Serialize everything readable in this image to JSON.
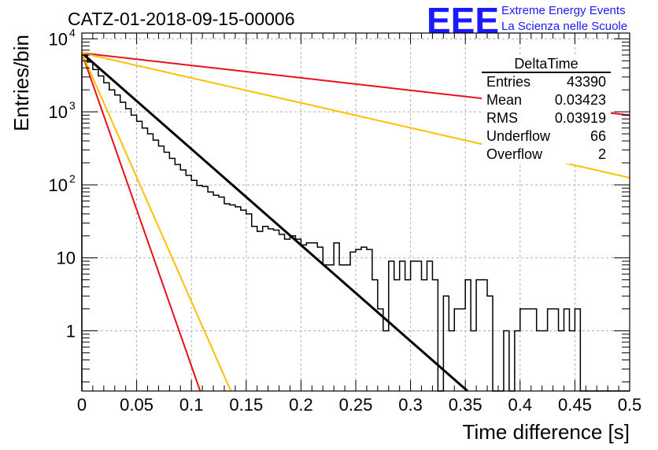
{
  "header": {
    "run_title": "CATZ-01-2018-09-15-00006",
    "logo_text": "EEE",
    "logo_line1": "Extreme Energy Events",
    "logo_line2": "La Scienza nelle Scuole",
    "logo_color": "#1a1aff"
  },
  "stats": {
    "title": "DeltaTime",
    "rows": [
      {
        "label": "Entries",
        "value": "43390"
      },
      {
        "label": "Mean",
        "value": "0.03423"
      },
      {
        "label": "RMS",
        "value": "0.03919"
      },
      {
        "label": "Underflow",
        "value": "66"
      },
      {
        "label": "Overflow",
        "value": "2"
      }
    ]
  },
  "chart_data": {
    "type": "histogram",
    "xlabel": "Time difference [s]",
    "ylabel": "Entries/bin",
    "xlim": [
      0,
      0.5
    ],
    "ylim": [
      0.15,
      12000
    ],
    "y_scale": "log",
    "grid": true,
    "x_ticks": [
      "0",
      "0.05",
      "0.1",
      "0.15",
      "0.2",
      "0.25",
      "0.3",
      "0.35",
      "0.4",
      "0.45",
      "0.5"
    ],
    "y_ticks": [
      {
        "value": 1,
        "label": "1",
        "exp": ""
      },
      {
        "value": 10,
        "label": "10",
        "exp": ""
      },
      {
        "value": 100,
        "label": "10",
        "exp": "2"
      },
      {
        "value": 1000,
        "label": "10",
        "exp": "3"
      },
      {
        "value": 10000,
        "label": "10",
        "exp": "4"
      }
    ],
    "bin_width": 0.005,
    "bin_start": 0,
    "histogram_color": "#000000",
    "histogram_values": [
      6000,
      4800,
      3800,
      3100,
      2500,
      2000,
      1700,
      1350,
      1100,
      900,
      740,
      600,
      500,
      410,
      340,
      280,
      230,
      190,
      160,
      135,
      115,
      98,
      95,
      80,
      72,
      68,
      55,
      53,
      50,
      45,
      40,
      27,
      23,
      27,
      25,
      24,
      21,
      18,
      20,
      18,
      15,
      16,
      16,
      14,
      8,
      8,
      16,
      8,
      8,
      12,
      13,
      14,
      13,
      5,
      2,
      1,
      9,
      5,
      9,
      5,
      9,
      9,
      5,
      9,
      5,
      0,
      3,
      1,
      2,
      2,
      5,
      1,
      5,
      5,
      3,
      0,
      0,
      1,
      0,
      1,
      2,
      2,
      2,
      1,
      1,
      2,
      2,
      1,
      2,
      1,
      2,
      0,
      0,
      0,
      0,
      0,
      0,
      0,
      0,
      0
    ],
    "fit_lines": [
      {
        "color": "#000000",
        "x": [
          0,
          0.352
        ],
        "y": [
          6400,
          0.15
        ]
      },
      {
        "color": "#e8101a",
        "x": [
          0,
          0.5
        ],
        "y": [
          6400,
          900
        ]
      },
      {
        "color": "#ffbf00",
        "x": [
          0,
          0.5
        ],
        "y": [
          6400,
          125
        ]
      },
      {
        "color": "#e8101a",
        "x": [
          0,
          0.108
        ],
        "y": [
          6400,
          0.15
        ]
      },
      {
        "color": "#ffbf00",
        "x": [
          0,
          0.136
        ],
        "y": [
          6400,
          0.15
        ]
      }
    ]
  }
}
